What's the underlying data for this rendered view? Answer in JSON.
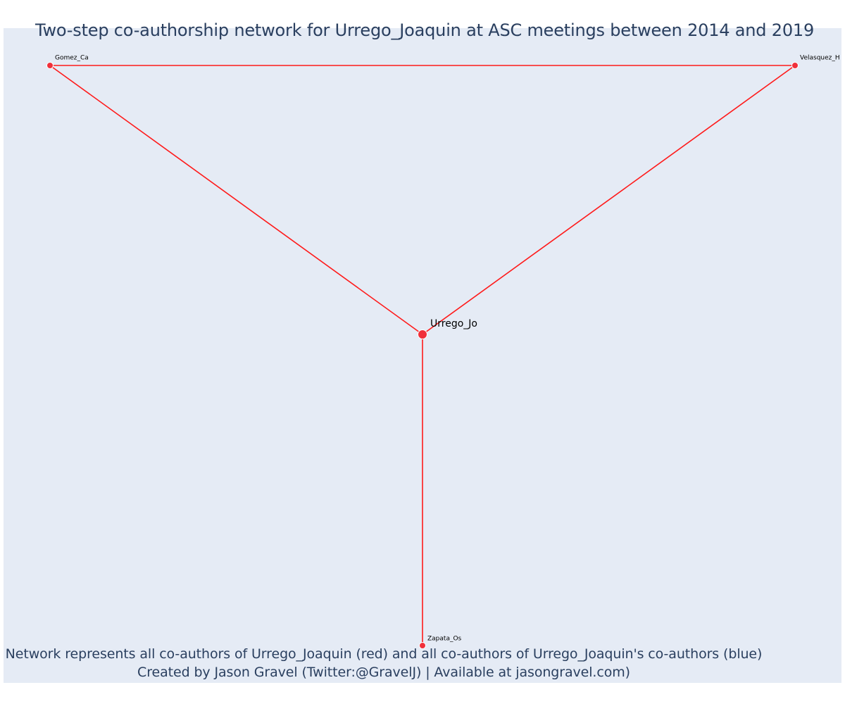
{
  "title": "Two-step co-authorship network for Urrego_Joaquin at ASC meetings between 2014 and 2019",
  "footer": {
    "line1": "Network represents all co-authors of Urrego_Joaquin (red) and all co-authors of Urrego_Joaquin's co-authors (blue)",
    "line2": "Created by Jason Gravel (Twitter:@GravelJ) | Available at jasongravel.com)"
  },
  "colors": {
    "plot_background": "#e5ebf5",
    "node": "#f0303a",
    "edge": "#ff1a1a",
    "text": "#2a3f5f"
  },
  "chart_data": {
    "type": "network",
    "nodes": [
      {
        "id": "Urrego_Jo",
        "label": "Urrego_Jo",
        "group": "focal",
        "color": "red"
      },
      {
        "id": "Gomez_Ca",
        "label": "Gomez_Ca",
        "group": "co-author",
        "color": "red"
      },
      {
        "id": "Velasquez_H",
        "label": "Velasquez_H",
        "group": "co-author",
        "color": "red"
      },
      {
        "id": "Zapata_Os",
        "label": "Zapata_Os",
        "group": "co-author",
        "color": "red"
      }
    ],
    "edges": [
      {
        "source": "Gomez_Ca",
        "target": "Velasquez_H"
      },
      {
        "source": "Gomez_Ca",
        "target": "Urrego_Jo"
      },
      {
        "source": "Velasquez_H",
        "target": "Urrego_Jo"
      },
      {
        "source": "Urrego_Jo",
        "target": "Zapata_Os"
      }
    ]
  }
}
